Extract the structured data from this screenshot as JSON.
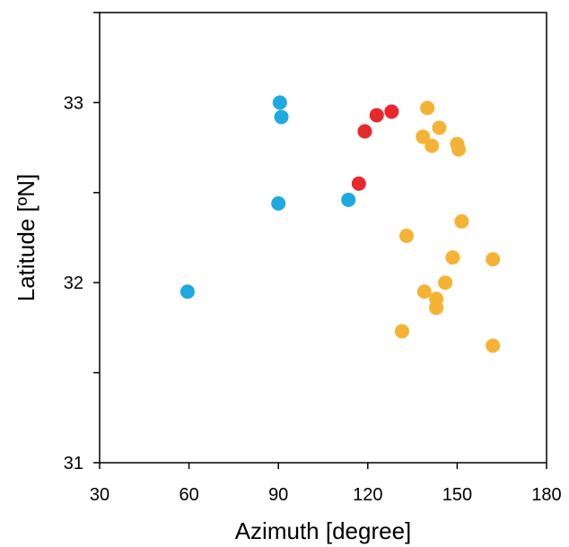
{
  "chart_data": {
    "type": "scatter",
    "xlabel": "Azimuth [degree]",
    "ylabel": "Latitude [ºN]",
    "xlim": [
      30,
      180
    ],
    "ylim": [
      31,
      33.5
    ],
    "xticks": [
      "30",
      "60",
      "90",
      "120",
      "150",
      "180"
    ],
    "yticks": [
      "31",
      "32",
      "33"
    ],
    "grid": false,
    "series": [
      {
        "color": "#1fa9e1",
        "points": [
          {
            "x": 90.5,
            "y": 33.0
          },
          {
            "x": 91.0,
            "y": 32.92
          },
          {
            "x": 90.0,
            "y": 32.44
          },
          {
            "x": 113.5,
            "y": 32.46
          },
          {
            "x": 59.5,
            "y": 31.95
          }
        ]
      },
      {
        "color": "#e8282b",
        "points": [
          {
            "x": 119.0,
            "y": 32.84
          },
          {
            "x": 123.0,
            "y": 32.93
          },
          {
            "x": 128.0,
            "y": 32.95
          },
          {
            "x": 117.0,
            "y": 32.55
          }
        ]
      },
      {
        "color": "#f5b335",
        "points": [
          {
            "x": 140.0,
            "y": 32.97
          },
          {
            "x": 144.0,
            "y": 32.86
          },
          {
            "x": 138.5,
            "y": 32.81
          },
          {
            "x": 141.5,
            "y": 32.76
          },
          {
            "x": 150.0,
            "y": 32.77
          },
          {
            "x": 150.5,
            "y": 32.74
          },
          {
            "x": 151.5,
            "y": 32.34
          },
          {
            "x": 133.0,
            "y": 32.26
          },
          {
            "x": 148.5,
            "y": 32.14
          },
          {
            "x": 162.0,
            "y": 32.13
          },
          {
            "x": 146.0,
            "y": 32.0
          },
          {
            "x": 139.0,
            "y": 31.95
          },
          {
            "x": 143.0,
            "y": 31.91
          },
          {
            "x": 143.0,
            "y": 31.86
          },
          {
            "x": 131.5,
            "y": 31.73
          },
          {
            "x": 162.0,
            "y": 31.65
          }
        ]
      }
    ]
  }
}
